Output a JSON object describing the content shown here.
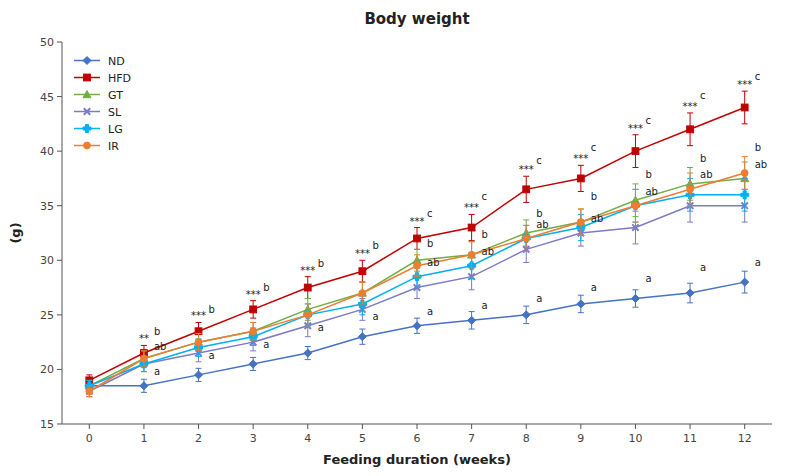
{
  "chart_data": {
    "type": "line",
    "title": "Body weight",
    "x_label": "Feeding duration (weeks)",
    "y_label": "(g)",
    "x": [
      0,
      1,
      2,
      3,
      4,
      5,
      6,
      7,
      8,
      9,
      10,
      11,
      12
    ],
    "xlim": [
      -0.5,
      12.5
    ],
    "xticks": [
      0,
      1,
      2,
      3,
      4,
      5,
      6,
      7,
      8,
      9,
      10,
      11,
      12
    ],
    "ylim": [
      15,
      50
    ],
    "yticks": [
      15,
      20,
      25,
      30,
      35,
      40,
      45,
      50
    ],
    "grid": false,
    "legend": "upper left",
    "series": [
      {
        "name": "ND",
        "color": "#4472C4",
        "marker": "diamond",
        "values": [
          18.5,
          18.5,
          19.5,
          20.5,
          21.5,
          23.0,
          24.0,
          24.5,
          25.0,
          26.0,
          26.5,
          27.0,
          28.0
        ],
        "errors": [
          0.5,
          0.6,
          0.6,
          0.6,
          0.6,
          0.7,
          0.7,
          0.8,
          0.8,
          0.8,
          0.8,
          0.9,
          1.0
        ]
      },
      {
        "name": "HFD",
        "color": "#C00000",
        "marker": "square",
        "values": [
          19.0,
          21.5,
          23.5,
          25.5,
          27.5,
          29.0,
          32.0,
          33.0,
          36.5,
          37.5,
          40.0,
          42.0,
          44.0
        ],
        "errors": [
          0.5,
          0.7,
          0.8,
          0.8,
          1.0,
          1.0,
          1.0,
          1.2,
          1.2,
          1.2,
          1.5,
          1.5,
          1.5
        ]
      },
      {
        "name": "GT",
        "color": "#70AD47",
        "marker": "triangle",
        "values": [
          18.5,
          21.0,
          22.5,
          23.5,
          25.5,
          27.0,
          30.0,
          30.5,
          32.5,
          33.5,
          35.5,
          37.0,
          37.5
        ],
        "errors": [
          0.5,
          0.7,
          0.8,
          0.8,
          1.0,
          1.0,
          1.0,
          1.2,
          1.2,
          1.2,
          1.5,
          1.5,
          1.5
        ]
      },
      {
        "name": "SL",
        "color": "#7B7BC8",
        "marker": "x",
        "values": [
          18.0,
          20.5,
          21.5,
          22.5,
          24.0,
          25.5,
          27.5,
          28.5,
          31.0,
          32.5,
          33.0,
          35.0,
          35.0
        ],
        "errors": [
          0.5,
          0.7,
          0.8,
          0.8,
          1.0,
          1.0,
          1.0,
          1.2,
          1.2,
          1.2,
          1.5,
          1.5,
          1.5
        ]
      },
      {
        "name": "LG",
        "color": "#00B0F0",
        "marker": "plus",
        "values": [
          18.5,
          20.5,
          22.0,
          23.0,
          25.0,
          26.0,
          28.5,
          29.5,
          32.0,
          33.0,
          35.0,
          36.0,
          36.0
        ],
        "errors": [
          0.5,
          0.7,
          0.8,
          0.8,
          1.0,
          1.0,
          1.0,
          1.2,
          1.2,
          1.2,
          1.5,
          1.5,
          1.5
        ]
      },
      {
        "name": "IR",
        "color": "#ED7D31",
        "marker": "circle",
        "values": [
          18.0,
          21.0,
          22.5,
          23.5,
          25.0,
          27.0,
          29.5,
          30.5,
          32.0,
          33.5,
          35.0,
          36.5,
          38.0
        ],
        "errors": [
          0.5,
          0.7,
          0.8,
          0.8,
          1.0,
          1.0,
          1.0,
          1.2,
          1.2,
          1.2,
          1.5,
          1.5,
          1.5
        ]
      }
    ],
    "significance": [
      {
        "text": "**",
        "x": 1,
        "series": "HFD"
      },
      {
        "text": "***",
        "x": 2,
        "series": "HFD"
      },
      {
        "text": "***",
        "x": 3,
        "series": "HFD"
      },
      {
        "text": "***",
        "x": 4,
        "series": "HFD"
      },
      {
        "text": "***",
        "x": 5,
        "series": "HFD"
      },
      {
        "text": "***",
        "x": 6,
        "series": "HFD"
      },
      {
        "text": "***",
        "x": 7,
        "series": "HFD"
      },
      {
        "text": "***",
        "x": 8,
        "series": "HFD"
      },
      {
        "text": "***",
        "x": 9,
        "series": "HFD"
      },
      {
        "text": "***",
        "x": 10,
        "series": "HFD"
      },
      {
        "text": "***",
        "x": 11,
        "series": "HFD"
      },
      {
        "text": "***",
        "x": 12,
        "series": "HFD"
      }
    ],
    "annotations": [
      {
        "text": "b",
        "x": 1,
        "y": 23.2
      },
      {
        "text": "ab",
        "x": 1,
        "y": 21.8
      },
      {
        "text": "a",
        "x": 1,
        "y": 19.5
      },
      {
        "text": "b",
        "x": 2,
        "y": 25.2
      },
      {
        "text": "a",
        "x": 2,
        "y": 21.0
      },
      {
        "text": "b",
        "x": 3,
        "y": 27.2
      },
      {
        "text": "a",
        "x": 3,
        "y": 22.0
      },
      {
        "text": "b",
        "x": 4,
        "y": 29.4
      },
      {
        "text": "a",
        "x": 4,
        "y": 23.5
      },
      {
        "text": "b",
        "x": 5,
        "y": 31.0
      },
      {
        "text": "a",
        "x": 5,
        "y": 24.5
      },
      {
        "text": "c",
        "x": 6,
        "y": 34.0
      },
      {
        "text": "b",
        "x": 6,
        "y": 31.2
      },
      {
        "text": "ab",
        "x": 6,
        "y": 29.5
      },
      {
        "text": "a",
        "x": 6,
        "y": 25.0
      },
      {
        "text": "c",
        "x": 7,
        "y": 35.5
      },
      {
        "text": "b",
        "x": 7,
        "y": 32.0
      },
      {
        "text": "ab",
        "x": 7,
        "y": 30.5
      },
      {
        "text": "a",
        "x": 7,
        "y": 25.5
      },
      {
        "text": "c",
        "x": 8,
        "y": 38.8
      },
      {
        "text": "b",
        "x": 8,
        "y": 34.0
      },
      {
        "text": "ab",
        "x": 8,
        "y": 33.0
      },
      {
        "text": "a",
        "x": 8,
        "y": 26.2
      },
      {
        "text": "c",
        "x": 9,
        "y": 40.0
      },
      {
        "text": "b",
        "x": 9,
        "y": 35.5
      },
      {
        "text": "ab",
        "x": 9,
        "y": 33.5
      },
      {
        "text": "a",
        "x": 9,
        "y": 27.2
      },
      {
        "text": "c",
        "x": 10,
        "y": 42.5
      },
      {
        "text": "b",
        "x": 10,
        "y": 37.5
      },
      {
        "text": "ab",
        "x": 10,
        "y": 36.0
      },
      {
        "text": "a",
        "x": 10,
        "y": 28.0
      },
      {
        "text": "c",
        "x": 11,
        "y": 44.8
      },
      {
        "text": "b",
        "x": 11,
        "y": 39.0
      },
      {
        "text": "ab",
        "x": 11,
        "y": 37.5
      },
      {
        "text": "a",
        "x": 11,
        "y": 29.0
      },
      {
        "text": "c",
        "x": 12,
        "y": 46.5
      },
      {
        "text": "b",
        "x": 12,
        "y": 40.0
      },
      {
        "text": "ab",
        "x": 12,
        "y": 38.5
      },
      {
        "text": "a",
        "x": 12,
        "y": 29.5
      }
    ]
  }
}
